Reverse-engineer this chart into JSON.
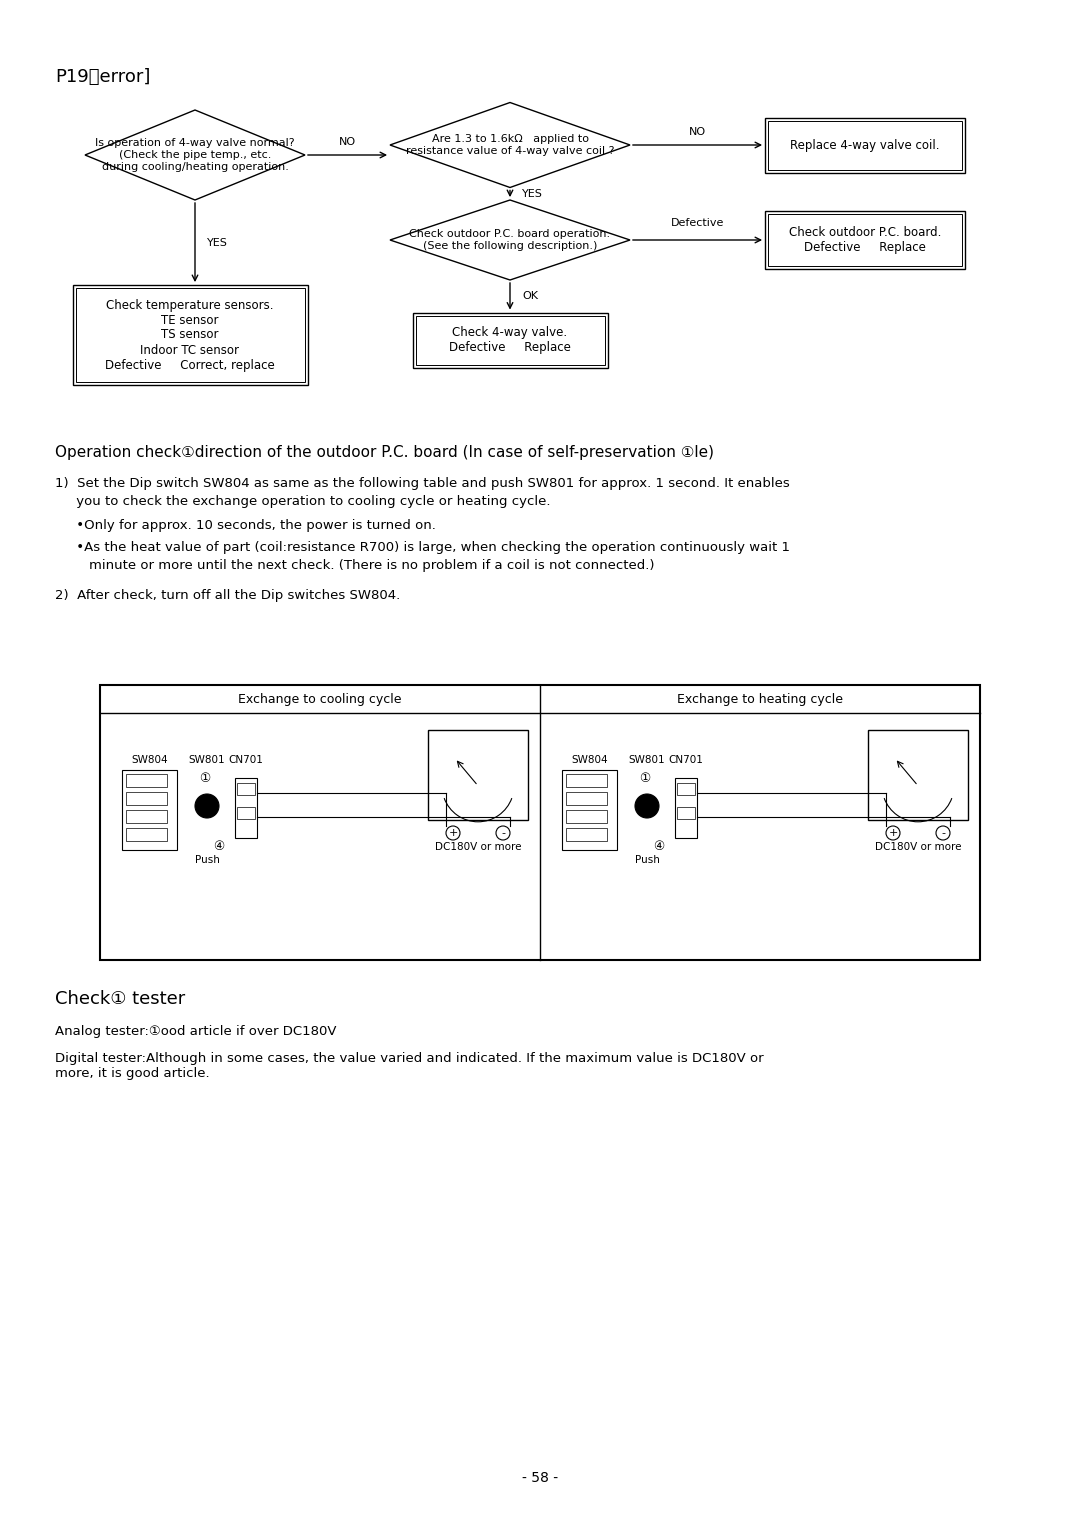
{
  "background_color": "#ffffff",
  "page_number": "- 58 -",
  "title": "P19をerror]",
  "cooling_label": "Exchange to cooling cycle",
  "heating_label": "Exchange to heating cycle",
  "check_tester_title": "Check① tester",
  "analog_tester_text": "Analog tester:①ood article if over DC180V",
  "digital_tester_text": "Digital tester:Although in some cases, the value varied and indicated. If the maximum value is DC180V or\nmore, it is good article.",
  "section2_title": "Operation check①direction of the outdoor P.C. board (In case of self-preservation ①le)",
  "item1": "1)  Set the Dip switch SW804 as same as the following table and push SW801 for approx. 1 second. It enables",
  "item1b": "     you to check the exchange operation to cooling cycle or heating cycle.",
  "item2": "     •Only for approx. 10 seconds, the power is turned on.",
  "item3": "     •As the heat value of part (coil:resistance R700) is large, when checking the operation continuously wait 1",
  "item3b": "        minute or more until the next check. (There is no problem if a coil is not connected.)",
  "item4": "2)  After check, turn off all the Dip switches SW804."
}
